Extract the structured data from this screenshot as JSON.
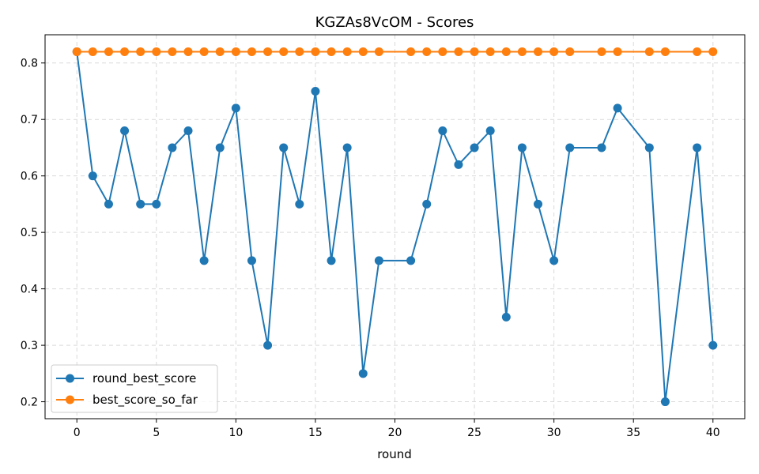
{
  "chart_data": {
    "type": "line",
    "title": "KGZAs8VcOM - Scores",
    "xlabel": "round",
    "ylabel": "",
    "xlim": [
      -2,
      42
    ],
    "ylim": [
      0.17,
      0.85
    ],
    "xticks": [
      0,
      5,
      10,
      15,
      20,
      25,
      30,
      35,
      40
    ],
    "yticks": [
      0.2,
      0.3,
      0.4,
      0.5,
      0.6,
      0.7,
      0.8
    ],
    "xtick_labels": [
      "0",
      "5",
      "10",
      "15",
      "20",
      "25",
      "30",
      "35",
      "40"
    ],
    "ytick_labels": [
      "0.2",
      "0.3",
      "0.4",
      "0.5",
      "0.6",
      "0.7",
      "0.8"
    ],
    "grid": true,
    "legend_position": "bottom-left",
    "series": [
      {
        "name": "round_best_score",
        "color": "#1f77b4",
        "x": [
          0,
          1,
          2,
          3,
          4,
          5,
          6,
          7,
          8,
          9,
          10,
          11,
          12,
          13,
          14,
          15,
          16,
          17,
          18,
          19,
          21,
          22,
          23,
          24,
          25,
          26,
          27,
          28,
          29,
          30,
          31,
          33,
          34,
          36,
          37,
          39,
          40
        ],
        "y": [
          0.82,
          0.6,
          0.55,
          0.68,
          0.55,
          0.55,
          0.65,
          0.68,
          0.45,
          0.65,
          0.72,
          0.45,
          0.3,
          0.65,
          0.55,
          0.75,
          0.45,
          0.65,
          0.25,
          0.45,
          0.45,
          0.55,
          0.68,
          0.62,
          0.65,
          0.68,
          0.35,
          0.65,
          0.55,
          0.45,
          0.65,
          0.65,
          0.72,
          0.65,
          0.2,
          0.65,
          0.3
        ]
      },
      {
        "name": "best_score_so_far",
        "color": "#ff7f0e",
        "x": [
          0,
          1,
          2,
          3,
          4,
          5,
          6,
          7,
          8,
          9,
          10,
          11,
          12,
          13,
          14,
          15,
          16,
          17,
          18,
          19,
          21,
          22,
          23,
          24,
          25,
          26,
          27,
          28,
          29,
          30,
          31,
          33,
          34,
          36,
          37,
          39,
          40
        ],
        "y": [
          0.82,
          0.82,
          0.82,
          0.82,
          0.82,
          0.82,
          0.82,
          0.82,
          0.82,
          0.82,
          0.82,
          0.82,
          0.82,
          0.82,
          0.82,
          0.82,
          0.82,
          0.82,
          0.82,
          0.82,
          0.82,
          0.82,
          0.82,
          0.82,
          0.82,
          0.82,
          0.82,
          0.82,
          0.82,
          0.82,
          0.82,
          0.82,
          0.82,
          0.82,
          0.82,
          0.82,
          0.82
        ]
      }
    ]
  }
}
